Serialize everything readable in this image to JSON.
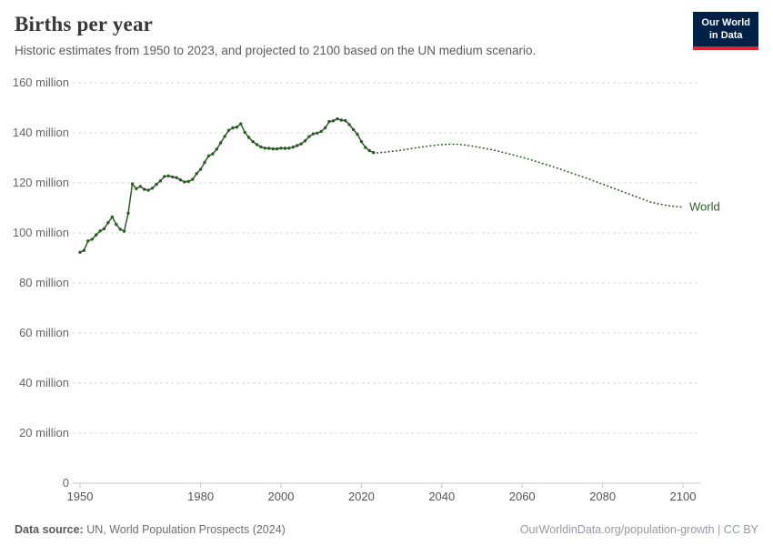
{
  "header": {
    "title": "Births per year",
    "subtitle": "Historic estimates from 1950 to 2023, and projected to 2100 based on the UN medium scenario."
  },
  "logo": {
    "line1": "Our World",
    "line2": "in Data",
    "bg_color": "#002147",
    "accent_color": "#e0232e"
  },
  "footer": {
    "source_label": "Data source:",
    "source_text": " UN, World Population Prospects (2024)",
    "right_text": "OurWorldinData.org/population-growth | CC BY"
  },
  "chart_data": {
    "type": "line",
    "title": "Births per year",
    "unit": "million",
    "line_color": "#2e5a27",
    "grid_color": "#d9d9d9",
    "axis_color": "#c6c6c6",
    "label_color": "#666666",
    "end_label": "World",
    "xlim": [
      1950,
      2100
    ],
    "ylim_millions": [
      0,
      160
    ],
    "x_ticks": [
      1950,
      1980,
      2000,
      2020,
      2040,
      2060,
      2080,
      2100
    ],
    "y_ticks": [
      {
        "v": 0,
        "label": "0"
      },
      {
        "v": 20,
        "label": "20 million"
      },
      {
        "v": 40,
        "label": "40 million"
      },
      {
        "v": 60,
        "label": "60 million"
      },
      {
        "v": 80,
        "label": "80 million"
      },
      {
        "v": 100,
        "label": "100 million"
      },
      {
        "v": 120,
        "label": "120 million"
      },
      {
        "v": 140,
        "label": "140 million"
      },
      {
        "v": 160,
        "label": "160 million"
      }
    ],
    "series": [
      {
        "name": "World (historic estimates)",
        "style": "solid-with-points",
        "x": [
          1950,
          1951,
          1952,
          1953,
          1954,
          1955,
          1956,
          1957,
          1958,
          1959,
          1960,
          1961,
          1962,
          1963,
          1964,
          1965,
          1966,
          1967,
          1968,
          1969,
          1970,
          1971,
          1972,
          1973,
          1974,
          1975,
          1976,
          1977,
          1978,
          1979,
          1980,
          1981,
          1982,
          1983,
          1984,
          1985,
          1986,
          1987,
          1988,
          1989,
          1990,
          1991,
          1992,
          1993,
          1994,
          1995,
          1996,
          1997,
          1998,
          1999,
          2000,
          2001,
          2002,
          2003,
          2004,
          2005,
          2006,
          2007,
          2008,
          2009,
          2010,
          2011,
          2012,
          2013,
          2014,
          2015,
          2016,
          2017,
          2018,
          2019,
          2020,
          2021,
          2022,
          2023
        ],
        "values_millions": [
          92.3,
          93.0,
          96.8,
          97.5,
          99.2,
          100.8,
          101.7,
          104.1,
          106.4,
          103.4,
          101.5,
          100.7,
          107.9,
          119.6,
          117.7,
          118.6,
          117.4,
          117.1,
          117.9,
          119.4,
          120.8,
          122.6,
          122.8,
          122.4,
          122.1,
          121.2,
          120.4,
          120.6,
          121.4,
          123.7,
          125.4,
          128.2,
          130.8,
          131.6,
          133.5,
          136.0,
          138.6,
          141.0,
          142.0,
          142.3,
          143.6,
          140.2,
          138.2,
          136.5,
          135.3,
          134.4,
          133.9,
          133.8,
          133.6,
          133.6,
          133.9,
          133.8,
          133.9,
          134.3,
          134.9,
          135.6,
          136.8,
          138.5,
          139.6,
          139.9,
          140.6,
          142.0,
          144.5,
          144.8,
          145.6,
          145.1,
          144.9,
          143.3,
          141.3,
          139.4,
          136.5,
          134.2,
          132.9,
          132.1
        ]
      },
      {
        "name": "World (UN medium projection)",
        "style": "dotted",
        "x": [
          2023,
          2024,
          2026,
          2028,
          2030,
          2032,
          2034,
          2036,
          2038,
          2040,
          2042,
          2044,
          2046,
          2048,
          2050,
          2052,
          2054,
          2056,
          2058,
          2060,
          2062,
          2064,
          2066,
          2068,
          2070,
          2072,
          2074,
          2076,
          2078,
          2080,
          2082,
          2084,
          2086,
          2088,
          2090,
          2092,
          2094,
          2096,
          2098,
          2100
        ],
        "values_millions": [
          132.1,
          132.0,
          132.3,
          132.7,
          133.1,
          133.6,
          134.1,
          134.6,
          135.0,
          135.3,
          135.5,
          135.4,
          135.1,
          134.6,
          134.0,
          133.4,
          132.7,
          131.9,
          131.1,
          130.2,
          129.3,
          128.3,
          127.3,
          126.3,
          125.2,
          124.1,
          123.0,
          121.9,
          120.7,
          119.5,
          118.3,
          117.1,
          115.9,
          114.7,
          113.5,
          112.3,
          111.6,
          111.0,
          110.6,
          110.3
        ]
      }
    ]
  }
}
